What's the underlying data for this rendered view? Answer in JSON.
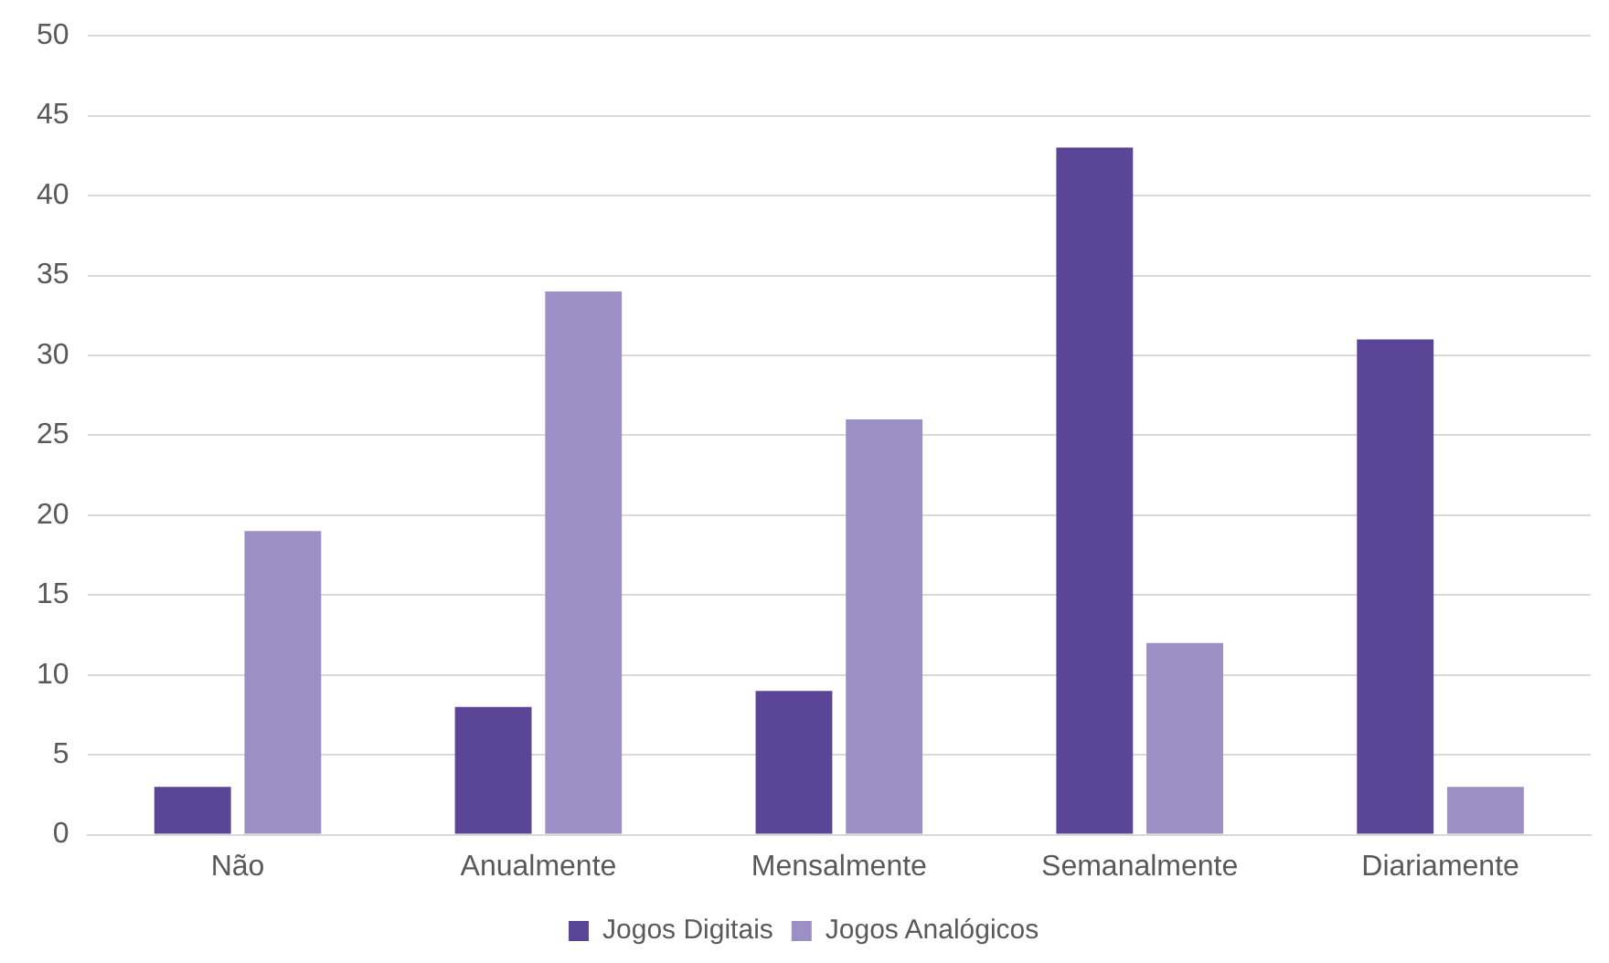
{
  "chart_data": {
    "type": "bar",
    "categories": [
      "Não",
      "Anualmente",
      "Mensalmente",
      "Semanalmente",
      "Diariamente"
    ],
    "series": [
      {
        "name": "Jogos Digitais",
        "color": "#5b4597",
        "values": [
          3,
          8,
          9,
          43,
          31
        ]
      },
      {
        "name": "Jogos Analógicos",
        "color": "#9c8fc6",
        "values": [
          19,
          34,
          26,
          12,
          3
        ]
      }
    ],
    "ylim": [
      0,
      50
    ],
    "yticks": [
      0,
      5,
      10,
      15,
      20,
      25,
      30,
      35,
      40,
      45,
      50
    ],
    "grid": "y",
    "legend": "bottom"
  }
}
